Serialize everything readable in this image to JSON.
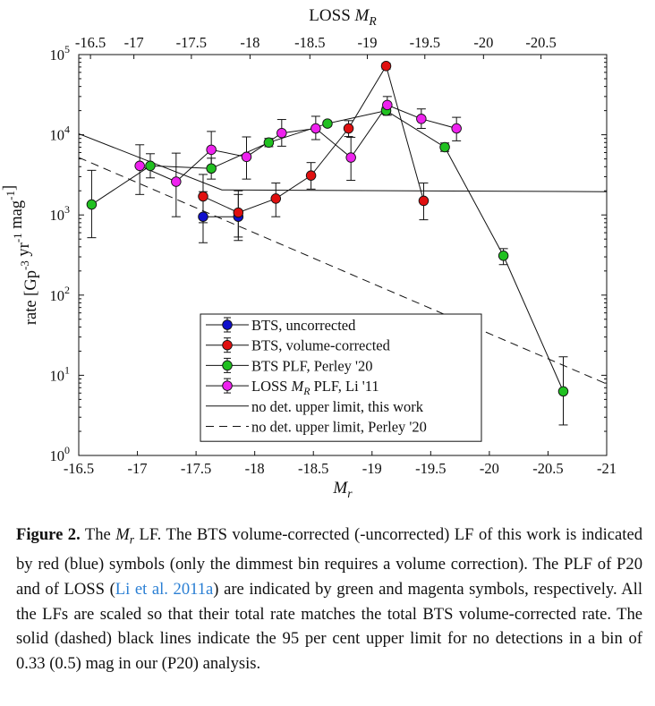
{
  "chart_data": {
    "type": "scatter",
    "x_axis": {
      "label": "M_r",
      "range": [
        -16.5,
        -21
      ],
      "ticks": [
        "-16.5",
        "-17",
        "-17.5",
        "-18",
        "-18.5",
        "-19",
        "-19.5",
        "-20",
        "-20.5",
        "-21"
      ]
    },
    "top_axis": {
      "label": "LOSS M_R",
      "ticks": [
        "-16.5",
        "-17",
        "-17.5",
        "-18",
        "-18.5",
        "-19",
        "-19.5",
        "-20",
        "-20.5"
      ],
      "tick_values_in_Mr": [
        -16.6,
        -16.97,
        -17.46,
        -17.96,
        -18.47,
        -18.96,
        -19.45,
        -19.95,
        -20.44
      ]
    },
    "y_axis": {
      "label": "rate [Gp^-3 yr^-1 mag^-1]",
      "scale": "log",
      "range": [
        1,
        100000
      ],
      "ticks": [
        "10^0",
        "10^1",
        "10^2",
        "10^3",
        "10^4",
        "10^5"
      ]
    },
    "series": [
      {
        "name": "BTS, uncorrected",
        "color": "#1010cc",
        "points": [
          {
            "x": -17.56,
            "y": 950,
            "lo": 450,
            "hi": 1950
          },
          {
            "x": -17.86,
            "y": 950,
            "lo": 480,
            "hi": 1800
          }
        ]
      },
      {
        "name": "BTS, volume-corrected",
        "color": "#e01010",
        "points": [
          {
            "x": -17.56,
            "y": 1700,
            "lo": 800,
            "hi": 3200
          },
          {
            "x": -17.86,
            "y": 1070,
            "lo": 530,
            "hi": 2000
          },
          {
            "x": -18.18,
            "y": 1600,
            "lo": 950,
            "hi": 2500
          },
          {
            "x": -18.48,
            "y": 3100,
            "lo": 2100,
            "hi": 4500
          },
          {
            "x": -18.8,
            "y": 12000,
            "lo": 9500,
            "hi": 15000
          },
          {
            "x": -19.12,
            "y": 72000,
            "lo": 66000,
            "hi": 78000
          },
          {
            "x": -19.44,
            "y": 1500,
            "lo": 870,
            "hi": 2500
          }
        ]
      },
      {
        "name": "BTS PLF, Perley '20",
        "color": "#20c020",
        "points": [
          {
            "x": -16.61,
            "y": 1350,
            "lo": 520,
            "hi": 3600
          },
          {
            "x": -17.11,
            "y": 4100,
            "lo": 2900,
            "hi": 5800
          },
          {
            "x": -17.63,
            "y": 3800,
            "lo": 2800,
            "hi": 5100
          },
          {
            "x": -18.12,
            "y": 8000,
            "lo": 7100,
            "hi": 9000
          },
          {
            "x": -18.62,
            "y": 13800,
            "lo": 12800,
            "hi": 14800
          },
          {
            "x": -19.12,
            "y": 20000,
            "lo": 18000,
            "hi": 22000
          },
          {
            "x": -19.62,
            "y": 7000,
            "lo": 6200,
            "hi": 7900
          },
          {
            "x": -20.12,
            "y": 310,
            "lo": 240,
            "hi": 380
          },
          {
            "x": -20.63,
            "y": 6.3,
            "lo": 2.4,
            "hi": 17
          }
        ]
      },
      {
        "name": "LOSS M_R PLF, Li '11",
        "color": "#ee22ee",
        "points": [
          {
            "x": -17.02,
            "y": 4100,
            "lo": 1800,
            "hi": 7500
          },
          {
            "x": -17.33,
            "y": 2600,
            "lo": 950,
            "hi": 5900
          },
          {
            "x": -17.63,
            "y": 6500,
            "lo": 3800,
            "hi": 11000
          },
          {
            "x": -17.93,
            "y": 5300,
            "lo": 2800,
            "hi": 9400
          },
          {
            "x": -18.23,
            "y": 10500,
            "lo": 7200,
            "hi": 15500
          },
          {
            "x": -18.52,
            "y": 12000,
            "lo": 8700,
            "hi": 17000
          },
          {
            "x": -18.82,
            "y": 5200,
            "lo": 2700,
            "hi": 9300
          },
          {
            "x": -19.13,
            "y": 23500,
            "lo": 17500,
            "hi": 30000
          },
          {
            "x": -19.42,
            "y": 15800,
            "lo": 12000,
            "hi": 21000
          },
          {
            "x": -19.72,
            "y": 12000,
            "lo": 8400,
            "hi": 16500
          }
        ]
      }
    ],
    "lines": [
      {
        "name": "no det. upper limit, this work",
        "style": "solid",
        "points": [
          [
            -16.5,
            10300
          ],
          [
            -17.72,
            2050
          ],
          [
            -21,
            1950
          ]
        ]
      },
      {
        "name": "no det. upper limit, Perley '20",
        "style": "dashed",
        "points": [
          [
            -16.5,
            5200
          ],
          [
            -21,
            7.8
          ]
        ]
      }
    ],
    "legend": {
      "placement": "lower-center",
      "entries": [
        "BTS, uncorrected",
        "BTS, volume-corrected",
        "BTS PLF, Perley '20",
        "LOSS M_R PLF, Li '11",
        "no det. upper limit, this work",
        "no det. upper limit, Perley '20"
      ]
    },
    "grid": false
  },
  "caption": {
    "label": "Figure 2.",
    "text_before_cite": "The M_r LF. The BTS volume-corrected (-uncorrected) LF of this work is indicated by red (blue) symbols (only the dimmest bin requires a volume correction). The PLF of P20 and of LOSS (",
    "cite": "Li et al. 2011a",
    "text_after_cite": ") are indicated by green and magenta symbols, respectively. All the LFs are scaled so that their total rate matches the total BTS volume-corrected rate. The solid (dashed) black lines indicate the 95 per cent upper limit for no detections in a bin of 0.33 (0.5) mag in our (P20) analysis."
  }
}
